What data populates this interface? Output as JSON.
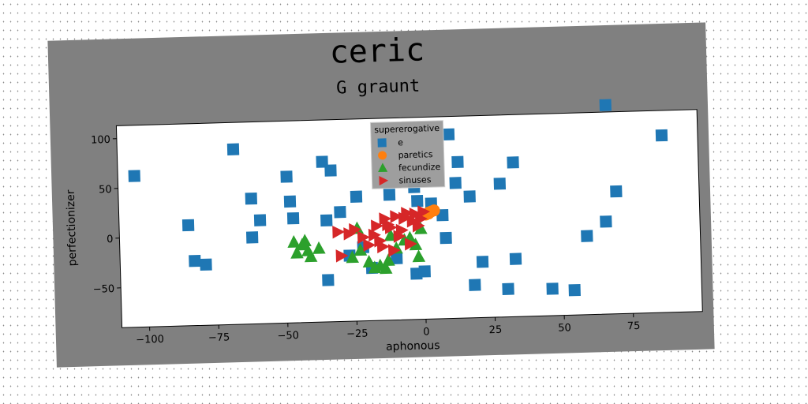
{
  "chart_data": {
    "type": "scatter",
    "title": "ceric",
    "subtitle": "G graunt",
    "xlabel": "aphonous",
    "ylabel": "perfectionizer",
    "xlim": [
      -110,
      100
    ],
    "ylim": [
      -90,
      113
    ],
    "xticks": [
      -100,
      -75,
      -50,
      -25,
      0,
      25,
      50,
      75
    ],
    "yticks": [
      -50,
      0,
      50,
      100
    ],
    "grid": false,
    "legend": {
      "title": "supererogative",
      "placement": "top-center"
    },
    "series": [
      {
        "name": "e",
        "marker": "square",
        "color": "#1f77b4",
        "points": [
          [
            -104,
            62
          ],
          [
            -85,
            11
          ],
          [
            -83,
            -25
          ],
          [
            -79,
            -29
          ],
          [
            -68,
            86
          ],
          [
            -62,
            -3
          ],
          [
            -62,
            36
          ],
          [
            -59,
            14
          ],
          [
            -49,
            57
          ],
          [
            -48,
            32
          ],
          [
            -47,
            15
          ],
          [
            -36,
            71
          ],
          [
            -35,
            -48
          ],
          [
            -35,
            12
          ],
          [
            -33,
            62
          ],
          [
            -30,
            20
          ],
          [
            -27,
            -24
          ],
          [
            -24,
            35
          ],
          [
            -22,
            -16
          ],
          [
            -19,
            -37
          ],
          [
            -12,
            36
          ],
          [
            -10,
            -28
          ],
          [
            -3,
            43
          ],
          [
            -3,
            -44
          ],
          [
            -2,
            29
          ],
          [
            0,
            -42
          ],
          [
            3,
            26
          ],
          [
            7,
            14
          ],
          [
            8,
            -9
          ],
          [
            10,
            95
          ],
          [
            12,
            46
          ],
          [
            13,
            67
          ],
          [
            17,
            32
          ],
          [
            18,
            -57
          ],
          [
            21,
            -34
          ],
          [
            28,
            44
          ],
          [
            30,
            -62
          ],
          [
            33,
            -32
          ],
          [
            33,
            65
          ],
          [
            46,
            -63
          ],
          [
            54,
            -65
          ],
          [
            59,
            -11
          ],
          [
            66,
            3
          ],
          [
            67,
            120
          ],
          [
            70,
            33
          ],
          [
            87,
            88
          ]
        ]
      },
      {
        "name": "paretics",
        "marker": "circle",
        "color": "#ff7f0e",
        "points": [
          [
            1,
            15
          ],
          [
            2,
            17
          ],
          [
            3,
            18
          ],
          [
            4,
            19
          ],
          [
            2,
            16
          ]
        ]
      },
      {
        "name": "fecundize",
        "marker": "triangle-up",
        "color": "#2ca02c",
        "points": [
          [
            -47,
            -9
          ],
          [
            -46,
            -20
          ],
          [
            -44,
            -12
          ],
          [
            -43,
            -8
          ],
          [
            -42,
            -18
          ],
          [
            -41,
            -24
          ],
          [
            -38,
            -16
          ],
          [
            -26,
            -26
          ],
          [
            -24,
            3
          ],
          [
            -23,
            -19
          ],
          [
            -20,
            -31
          ],
          [
            -18,
            -37
          ],
          [
            -16,
            -35
          ],
          [
            -14,
            -38
          ],
          [
            -13,
            -30
          ],
          [
            -12,
            -5
          ],
          [
            -10,
            -18
          ],
          [
            -7,
            -10
          ],
          [
            -5,
            -8
          ],
          [
            -3,
            -15
          ],
          [
            -2,
            -27
          ],
          [
            -1,
            1
          ]
        ]
      },
      {
        "name": "sinuses",
        "marker": "triangle-right",
        "color": "#d62728",
        "points": [
          [
            -31,
            0
          ],
          [
            -30,
            -24
          ],
          [
            -27,
            -2
          ],
          [
            -25,
            2
          ],
          [
            -22,
            -6
          ],
          [
            -20,
            -14
          ],
          [
            -18,
            -4
          ],
          [
            -17,
            5
          ],
          [
            -16,
            -10
          ],
          [
            -15,
            -16
          ],
          [
            -14,
            12
          ],
          [
            -13,
            6
          ],
          [
            -12,
            3
          ],
          [
            -11,
            -20
          ],
          [
            -10,
            14
          ],
          [
            -9,
            -6
          ],
          [
            -8,
            0
          ],
          [
            -7,
            12
          ],
          [
            -6,
            17
          ],
          [
            -5,
            -14
          ],
          [
            -4,
            9
          ],
          [
            -3,
            16
          ],
          [
            -2,
            4
          ],
          [
            -1,
            11
          ],
          [
            0,
            18
          ]
        ]
      }
    ]
  }
}
